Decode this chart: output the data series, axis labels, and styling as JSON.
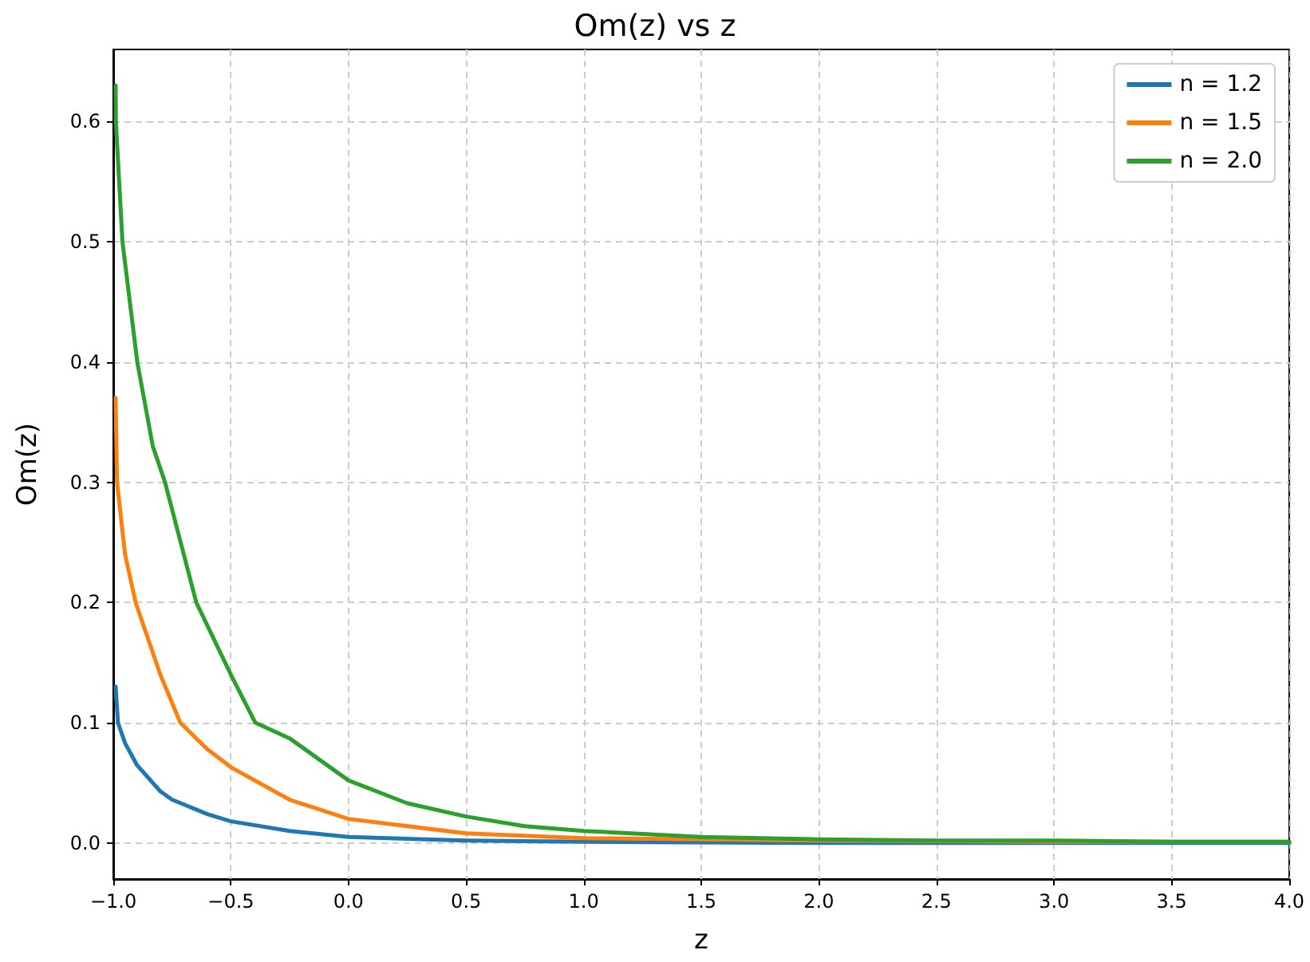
{
  "chart_data": {
    "type": "line",
    "title": "Om(z) vs z",
    "xlabel": "z",
    "ylabel": "Om(z)",
    "xlim": [
      -1.0,
      4.0
    ],
    "ylim": [
      -0.03,
      0.66
    ],
    "xticks": [
      {
        "value": -1.0,
        "label": "−1.0"
      },
      {
        "value": -0.5,
        "label": "−0.5"
      },
      {
        "value": 0,
        "label": "0.0"
      },
      {
        "value": 0.5,
        "label": "0.5"
      },
      {
        "value": 1,
        "label": "1.0"
      },
      {
        "value": 1.5,
        "label": "1.5"
      },
      {
        "value": 2,
        "label": "2.0"
      },
      {
        "value": 2.5,
        "label": "2.5"
      },
      {
        "value": 3,
        "label": "3.0"
      },
      {
        "value": 3.5,
        "label": "3.5"
      },
      {
        "value": 4,
        "label": "4.0"
      }
    ],
    "yticks": [
      {
        "value": 0,
        "label": "0.0"
      },
      0.1,
      0.2,
      0.3,
      0.4,
      0.5,
      0.6
    ],
    "grid": true,
    "legend": "top right",
    "line_style": "solid",
    "marker": "none",
    "series": [
      {
        "name": "n = 1.2",
        "color": "#1f77b4",
        "x": [
          -0.99,
          -0.98,
          -0.95,
          -0.9,
          -0.8,
          -0.75,
          -0.6,
          -0.5,
          -0.25,
          0,
          0.5,
          1,
          2,
          4
        ],
        "values": [
          0.13,
          0.1,
          0.083,
          0.065,
          0.043,
          0.036,
          0.024,
          0.018,
          0.01,
          0.005,
          0.002,
          0.001,
          0,
          0
        ]
      },
      {
        "name": "n = 1.5",
        "color": "#ff7f0e",
        "x": [
          -0.99,
          -0.984,
          -0.95,
          -0.905,
          -0.8,
          -0.715,
          -0.6,
          -0.5,
          -0.25,
          0,
          0.5,
          1,
          1.5,
          2,
          3,
          4
        ],
        "values": [
          0.37,
          0.3,
          0.24,
          0.2,
          0.14,
          0.1,
          0.078,
          0.063,
          0.036,
          0.02,
          0.008,
          0.004,
          0.003,
          0.002,
          0.001,
          0.001
        ]
      },
      {
        "name": "n = 2.0",
        "color": "#2ca02c",
        "x": [
          -0.99,
          -0.989,
          -0.961,
          -0.898,
          -0.832,
          -0.78,
          -0.647,
          -0.5,
          -0.396,
          -0.25,
          0,
          0.25,
          0.5,
          0.75,
          1,
          1.5,
          2,
          2.5,
          3,
          3.5,
          4
        ],
        "values": [
          0.63,
          0.6,
          0.5,
          0.4,
          0.33,
          0.3,
          0.2,
          0.14,
          0.1,
          0.087,
          0.052,
          0.033,
          0.022,
          0.014,
          0.01,
          0.005,
          0.003,
          0.002,
          0.002,
          0.001,
          0.001
        ]
      }
    ]
  }
}
